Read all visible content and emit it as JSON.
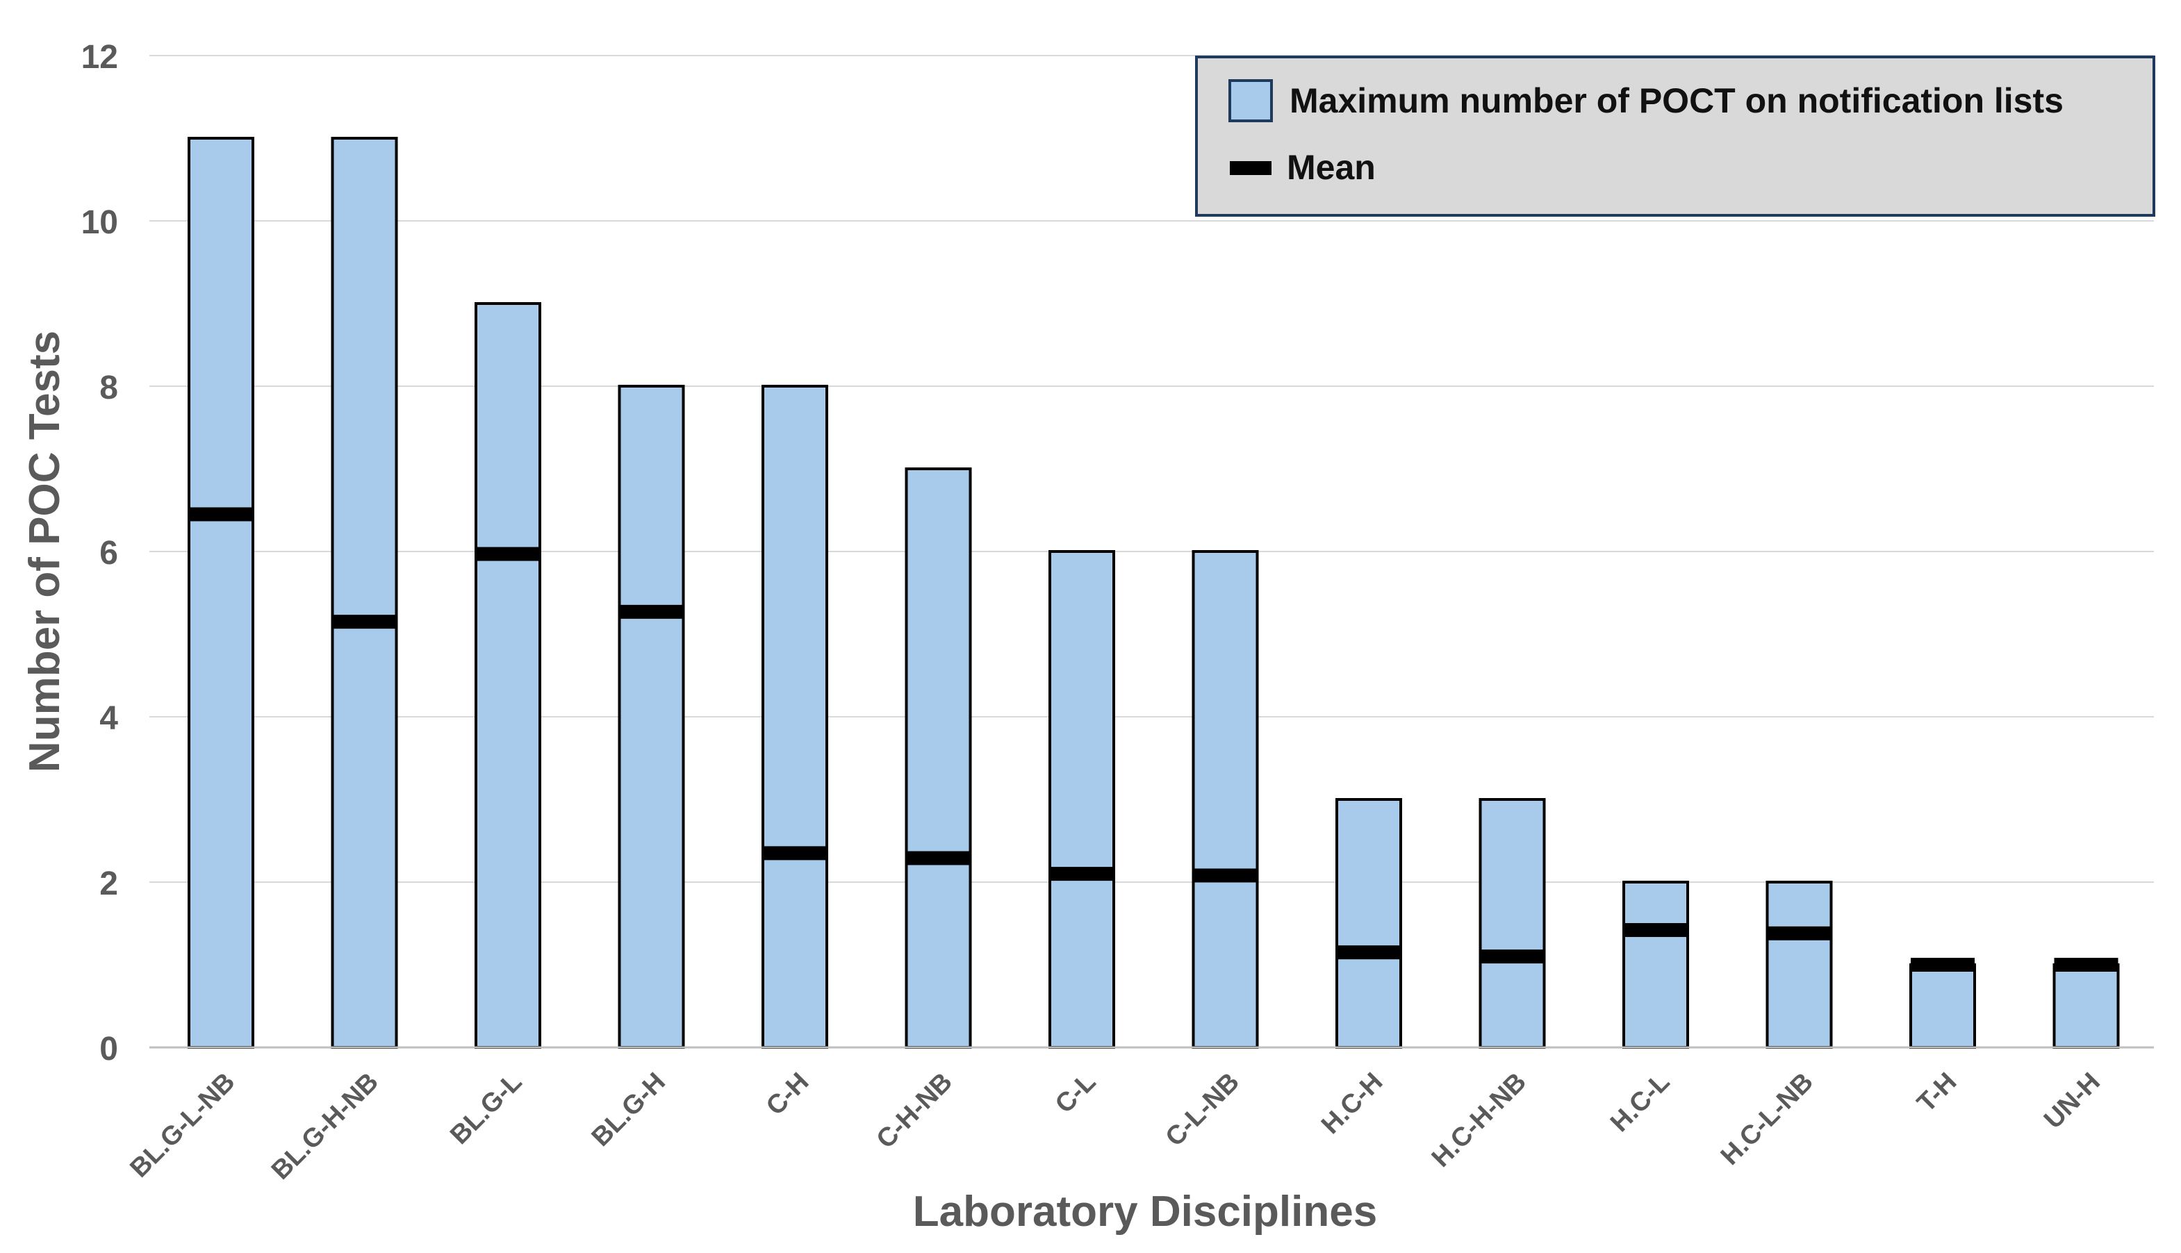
{
  "chart_data": {
    "type": "bar",
    "xlabel": "Laboratory Disciplines",
    "ylabel": "Number of POC Tests",
    "ylim": [
      0,
      12
    ],
    "yticks": [
      "0",
      "2",
      "4",
      "6",
      "8",
      "10",
      "12"
    ],
    "grid": true,
    "legend_position": "top-right",
    "categories": [
      "BL.G-L-NB",
      "BL.G-H-NB",
      "BL.G-L",
      "BL.G-H",
      "C-H",
      "C-H-NB",
      "C-L",
      "C-L-NB",
      "H.C-H",
      "H.C-H-NB",
      "H.C-L",
      "H.C-L-NB",
      "T-H",
      "UN-H"
    ],
    "series": [
      {
        "name": "Maximum number of POCT on notification lists",
        "kind": "bar",
        "color": "#a8cbec",
        "values": [
          11,
          11,
          9,
          8,
          8,
          7,
          6,
          6,
          3,
          3,
          2,
          2,
          1,
          1
        ]
      },
      {
        "name": "Mean",
        "kind": "marker",
        "color": "#000000",
        "values": [
          6.45,
          5.15,
          5.97,
          5.27,
          2.35,
          2.29,
          2.1,
          2.08,
          1.15,
          1.1,
          1.42,
          1.38,
          1.0,
          1.0
        ]
      }
    ]
  },
  "colors": {
    "bar_fill": "#a8cbec",
    "bar_stroke": "#000000",
    "grid": "#d9d9d9",
    "legend_bg": "#d9d9d9",
    "legend_border": "#1f3a5a",
    "text": "#5a5a5a"
  }
}
